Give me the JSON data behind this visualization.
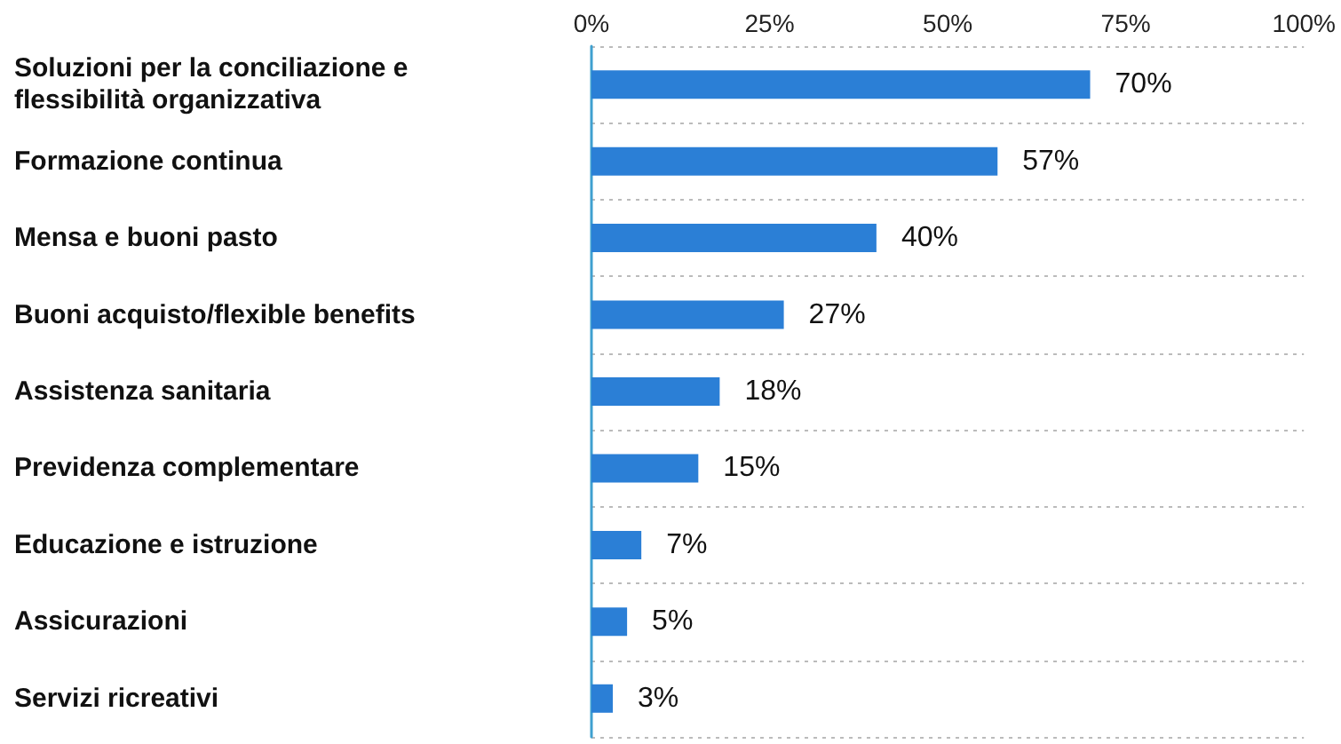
{
  "chart_data": {
    "type": "bar",
    "orientation": "horizontal",
    "categories": [
      "Soluzioni per la conciliazione e flessibilità organizzativa",
      "Formazione continua",
      "Mensa e buoni pasto",
      "Buoni acquisto/flexible benefits",
      "Assistenza sanitaria",
      "Previdenza complementare",
      "Educazione e istruzione",
      "Assicurazioni",
      "Servizi ricreativi"
    ],
    "values": [
      70,
      57,
      40,
      27,
      18,
      15,
      7,
      5,
      3
    ],
    "value_labels": [
      "70%",
      "57%",
      "40%",
      "27%",
      "18%",
      "15%",
      "7%",
      "5%",
      "3%"
    ],
    "color": "#2b7fd6",
    "xlim": [
      0,
      100
    ],
    "xticks": [
      {
        "value": 0,
        "label": "0%"
      },
      {
        "value": 25,
        "label": "25%"
      },
      {
        "value": 50,
        "label": "50%"
      },
      {
        "value": 75,
        "label": "75%"
      },
      {
        "value": 100,
        "label": "100%"
      }
    ],
    "grid": "y"
  }
}
